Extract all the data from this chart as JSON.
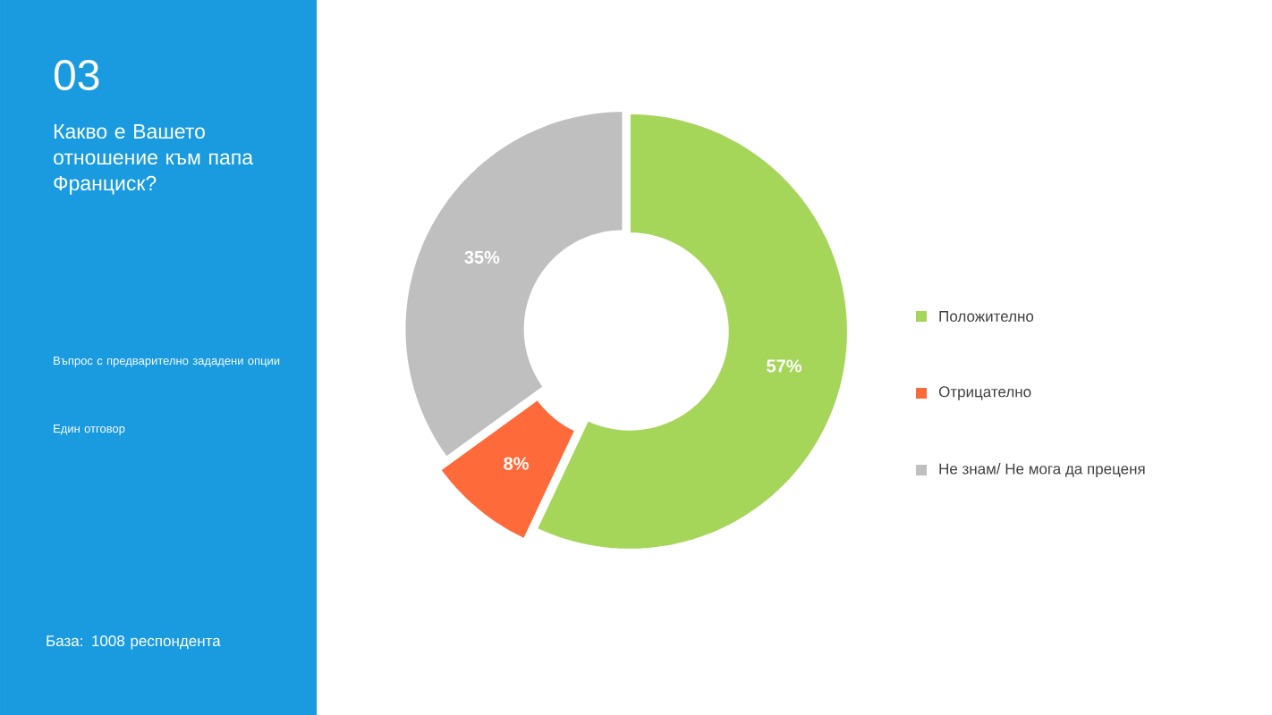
{
  "chart_data": {
    "type": "donut",
    "title": "Какво е Вашето отношение към папа Франциск?",
    "annotations": [
      "03",
      "Въпрос с предварително зададени опции",
      "Един отговор",
      "База: 1008 респондента"
    ],
    "categories": [
      "Положително",
      "Отрицателно",
      "Не знам/ Не мога да преценя"
    ],
    "values": [
      57,
      8,
      35
    ],
    "value_labels": [
      "57%",
      "8%",
      "35%"
    ],
    "colors": [
      "#a5d65a",
      "#ff6a3a",
      "#bfbfbf"
    ],
    "legend": "right"
  }
}
